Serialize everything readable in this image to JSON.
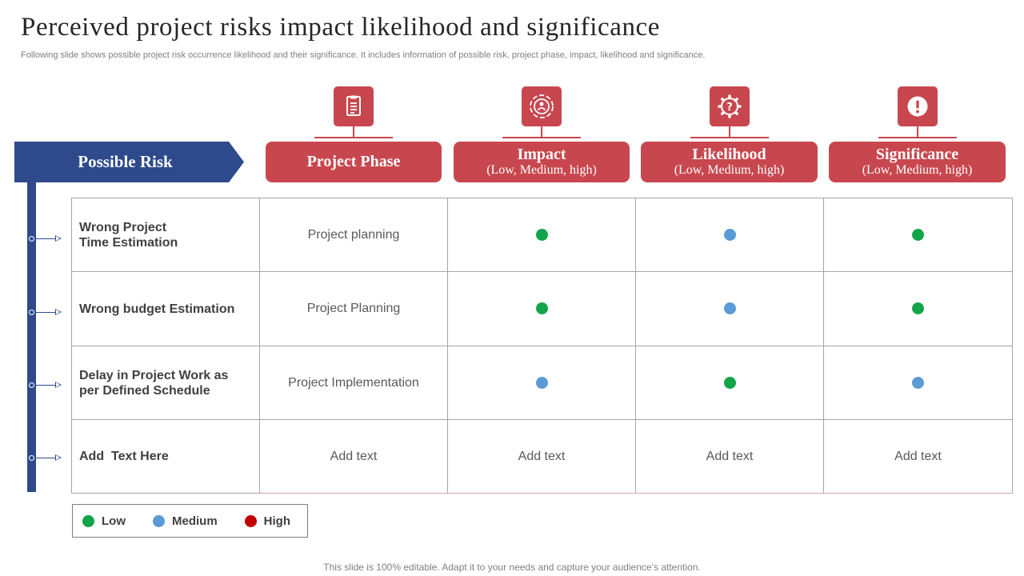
{
  "header": {
    "title": "Perceived project risks impact likelihood and significance",
    "subtitle": "Following slide shows possible project risk occurrence likelihood and their significance. It includes information of possible risk, project phase, impact, likelihood and significance."
  },
  "risk_header": "Possible Risk",
  "columns": [
    {
      "title": "Project Phase",
      "subtitle": "",
      "icon": "document-icon"
    },
    {
      "title": "Impact",
      "subtitle": "(Low, Medium, high)",
      "icon": "target-icon"
    },
    {
      "title": "Likelihood",
      "subtitle": "(Low, Medium, high)",
      "icon": "gear-question-icon"
    },
    {
      "title": "Significance",
      "subtitle": "(Low, Medium, high)",
      "icon": "alert-icon"
    }
  ],
  "rows": [
    {
      "risk": "Wrong Project\nTime Estimation",
      "phase": "Project planning",
      "impact": "Low",
      "likelihood": "Medium",
      "significance": "Low"
    },
    {
      "risk": "Wrong budget Estimation",
      "phase": "Project Planning",
      "impact": "Low",
      "likelihood": "Medium",
      "significance": "Low"
    },
    {
      "risk": "Delay in Project Work as\nper Defined Schedule",
      "phase": "Project Implementation",
      "impact": "Medium",
      "likelihood": "Low",
      "significance": "Medium"
    },
    {
      "risk": "Add  Text Here",
      "phase": "Add text",
      "impact_text": "Add text",
      "likelihood_text": "Add text",
      "significance_text": "Add text"
    }
  ],
  "legend": [
    {
      "label": "Low",
      "color": "#12a44a"
    },
    {
      "label": "Medium",
      "color": "#5b9bd5"
    },
    {
      "label": "High",
      "color": "#c00000"
    }
  ],
  "colors": {
    "low": "#12a44a",
    "medium": "#5b9bd5",
    "high": "#c00000",
    "accent_red": "#c8474e",
    "accent_blue": "#2e4a8c"
  },
  "footer": "This slide is 100% editable. Adapt it to your needs and capture your audience’s attention."
}
